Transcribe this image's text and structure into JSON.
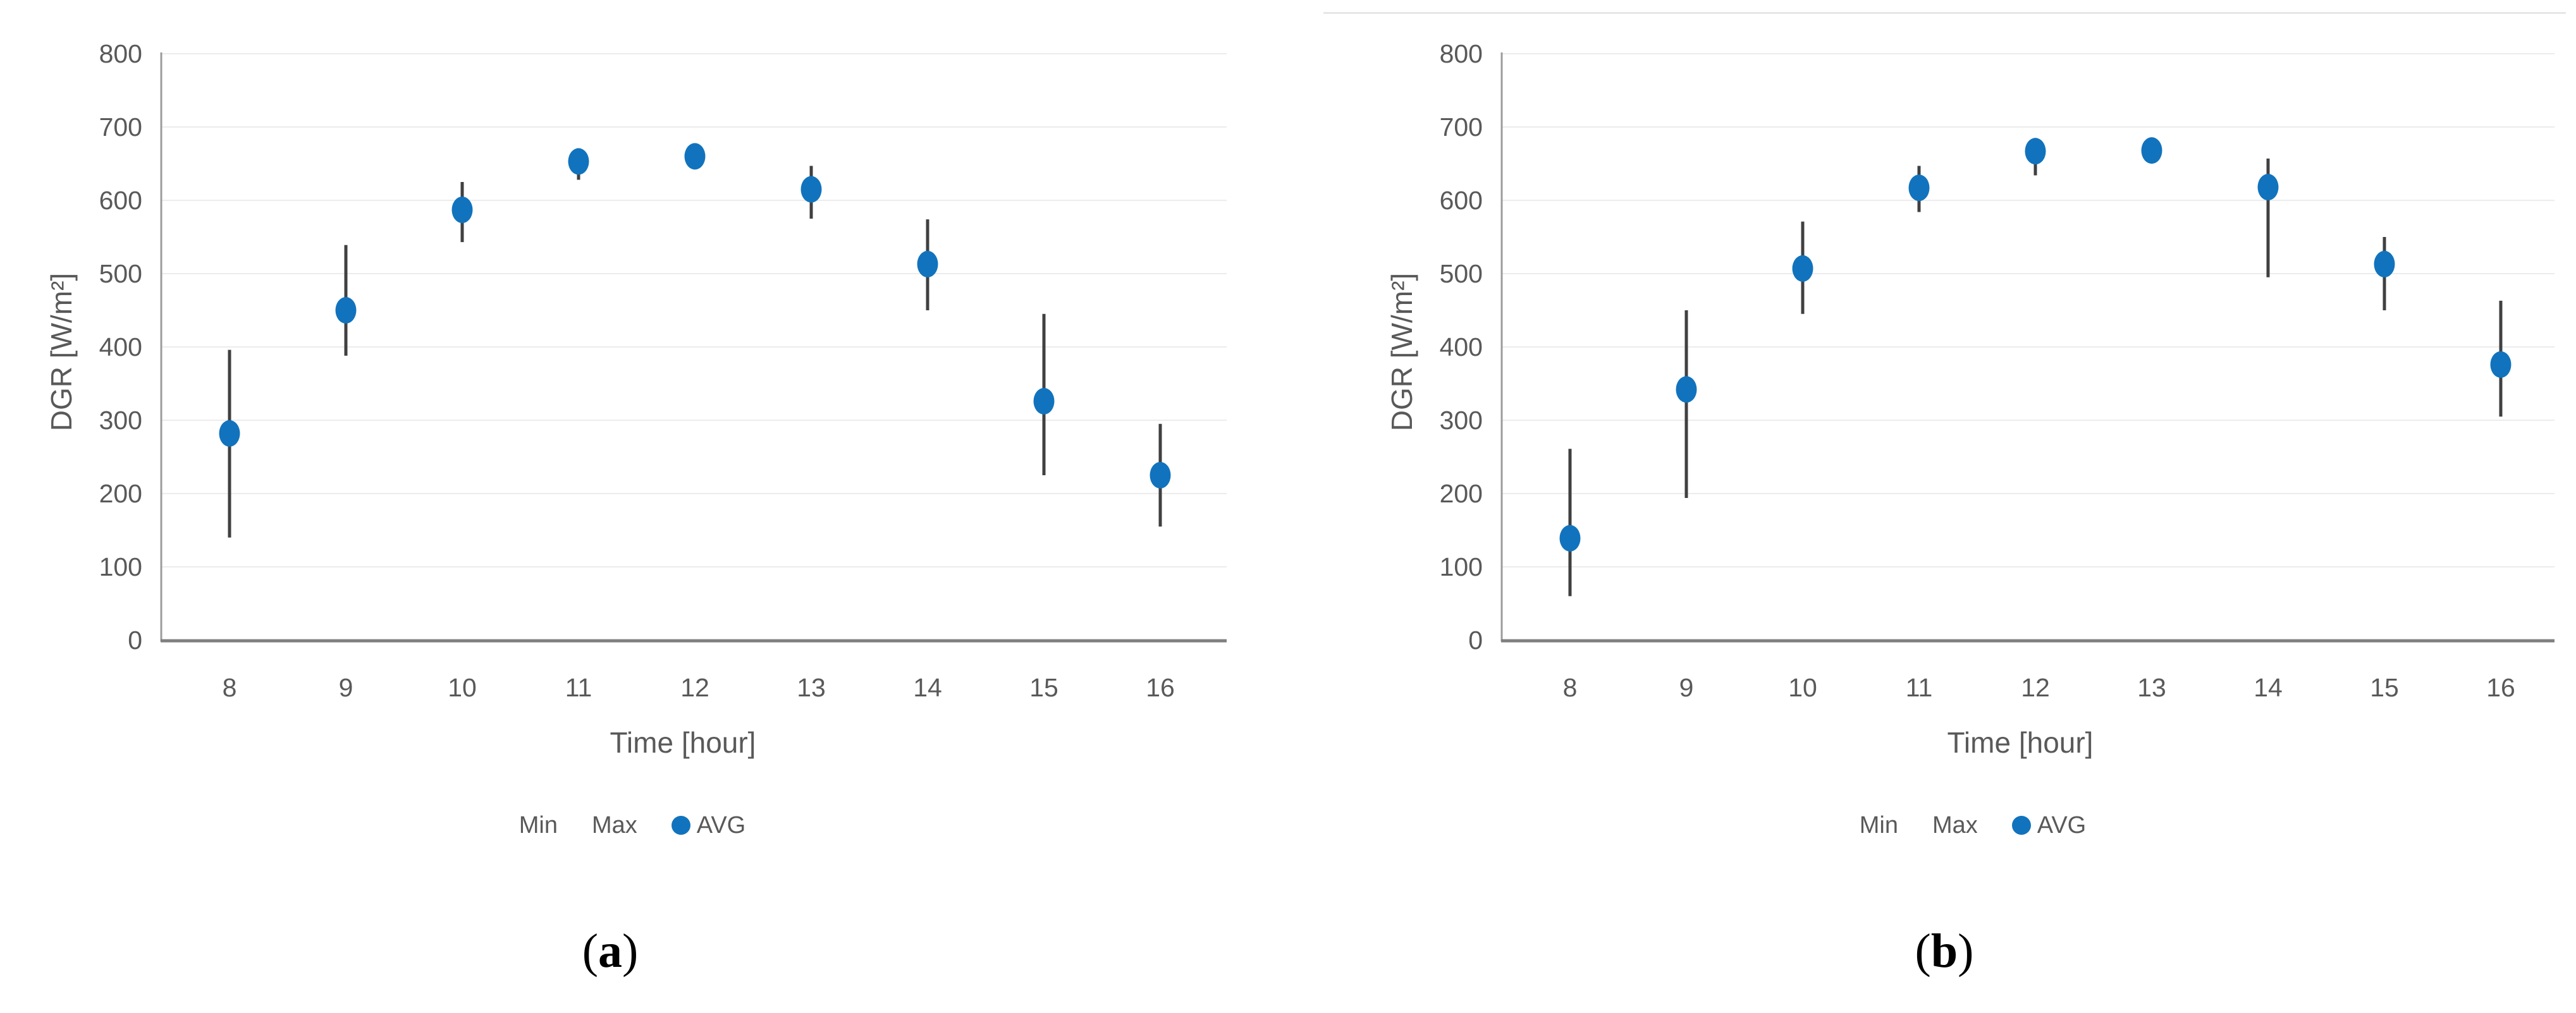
{
  "figure": {
    "kind": "two-panel scatter chart with min/max error bars",
    "background_color": "#ffffff",
    "accent_blue": "#1173BD",
    "text_gray": "#595959"
  },
  "chart_data": [
    {
      "id": "a",
      "type": "scatter",
      "title": "",
      "xlabel": "Time [hour]",
      "ylabel": "DGR [W/m²]",
      "ylim": [
        0,
        800
      ],
      "y_tick_step": 100,
      "y_tick_labels": [
        "0",
        "100",
        "200",
        "300",
        "400",
        "500",
        "600",
        "700",
        "800"
      ],
      "categories": [
        "8",
        "9",
        "10",
        "11",
        "12",
        "13",
        "14",
        "15",
        "16"
      ],
      "grid": true,
      "legend_position": "bottom",
      "legend": [
        "Min",
        "Max",
        "AVG"
      ],
      "caption": {
        "open": "(",
        "letter": "a",
        "close": ")"
      },
      "avg_color": "#1173BD",
      "series": [
        {
          "name": "Min",
          "values": [
            140,
            388,
            543,
            628,
            650,
            575,
            450,
            225,
            155
          ]
        },
        {
          "name": "Max",
          "values": [
            396,
            539,
            625,
            671,
            672,
            647,
            574,
            445,
            295
          ]
        },
        {
          "name": "AVG",
          "values": [
            282,
            450,
            587,
            653,
            660,
            615,
            513,
            326,
            225
          ]
        }
      ]
    },
    {
      "id": "b",
      "type": "scatter",
      "title": "",
      "xlabel": "Time [hour]",
      "ylabel": "DGR [W/m²]",
      "ylim": [
        0,
        800
      ],
      "y_tick_step": 100,
      "y_tick_labels": [
        "0",
        "100",
        "200",
        "300",
        "400",
        "500",
        "600",
        "700",
        "800"
      ],
      "categories": [
        "8",
        "9",
        "10",
        "11",
        "12",
        "13",
        "14",
        "15",
        "16"
      ],
      "grid": true,
      "legend_position": "bottom",
      "legend": [
        "Min",
        "Max",
        "AVG"
      ],
      "caption": {
        "open": "(",
        "letter": "b",
        "close": ")"
      },
      "avg_color": "#1173BD",
      "series": [
        {
          "name": "Min",
          "values": [
            60,
            194,
            445,
            584,
            634,
            658,
            495,
            450,
            305
          ]
        },
        {
          "name": "Max",
          "values": [
            261,
            450,
            571,
            647,
            685,
            680,
            657,
            550,
            463
          ]
        },
        {
          "name": "AVG",
          "values": [
            139,
            342,
            507,
            617,
            667,
            668,
            618,
            513,
            376
          ]
        }
      ]
    }
  ]
}
